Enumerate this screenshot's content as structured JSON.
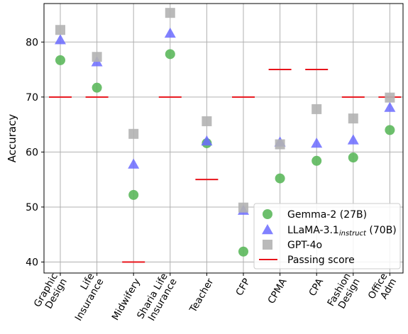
{
  "chart_data": {
    "type": "scatter",
    "ylabel": "Accuracy",
    "xlabel": "",
    "ylim": [
      38,
      87
    ],
    "yticks": [
      40,
      50,
      60,
      70,
      80
    ],
    "grid": true,
    "legend_position": "bottom-right",
    "categories": [
      [
        "Graphic",
        "Design"
      ],
      [
        "Life",
        "Insurance"
      ],
      [
        "Midwifery"
      ],
      [
        "Sharia Life",
        "Insurance"
      ],
      [
        "Teacher"
      ],
      [
        "CFP"
      ],
      [
        "CPMA"
      ],
      [
        "CPA"
      ],
      [
        "Fashion",
        "Design"
      ],
      [
        "Office",
        "Adm"
      ]
    ],
    "series": [
      {
        "name": "Gemma-2 (27B)",
        "marker": "circle",
        "color": "#5cb85c",
        "values": [
          76.7,
          71.7,
          52.2,
          77.8,
          61.6,
          41.9,
          55.2,
          58.4,
          59.0,
          64.0
        ]
      },
      {
        "name": "LLaMA-3.1",
        "name_subscript": "instruct",
        "name_suffix": " (70B)",
        "marker": "triangle",
        "color": "#6b6bff",
        "values": [
          80.4,
          76.4,
          57.8,
          81.6,
          62.0,
          49.4,
          61.8,
          61.6,
          62.2,
          68.1
        ]
      },
      {
        "name": "GPT-4o",
        "marker": "square",
        "color": "#b3b3b3",
        "values": [
          82.2,
          77.3,
          63.3,
          85.3,
          65.6,
          49.9,
          61.4,
          67.8,
          66.1,
          69.9
        ]
      }
    ],
    "passing_score": {
      "name": "Passing score",
      "color": "#e8141b",
      "values": [
        70,
        70,
        40,
        70,
        55,
        70,
        75,
        75,
        70,
        70
      ]
    }
  }
}
